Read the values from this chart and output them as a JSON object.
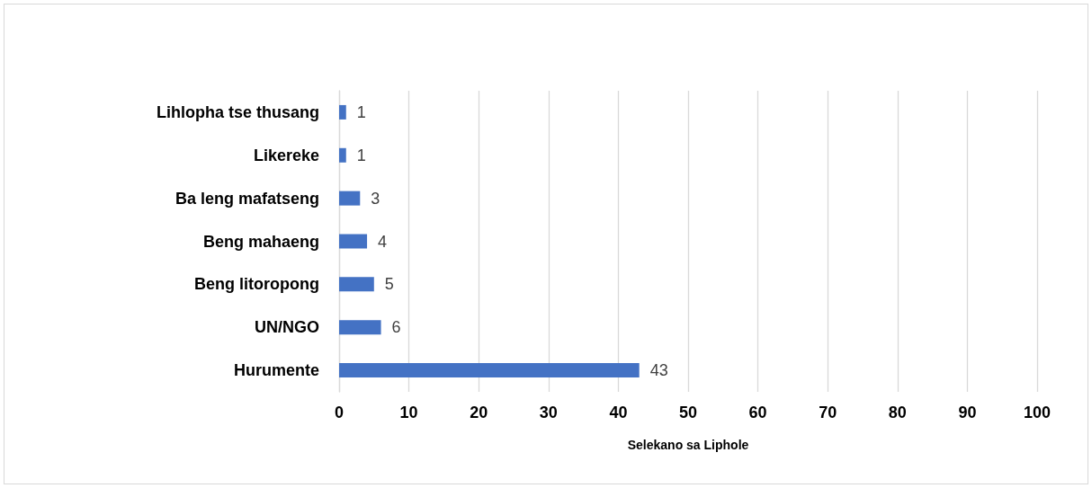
{
  "chart_data": {
    "type": "bar",
    "orientation": "horizontal",
    "xlabel": "Selekano sa Liphole",
    "categories": [
      "Lihlopha tse thusang",
      "Likereke",
      "Ba leng mafatseng",
      "Beng mahaeng",
      "Beng litoropong",
      "UN/NGO",
      "Hurumente"
    ],
    "values": [
      1,
      1,
      3,
      4,
      5,
      6,
      43
    ],
    "color": "#4472c4",
    "xlim": [
      0,
      100
    ],
    "xticks": [
      0,
      10,
      20,
      30,
      40,
      50,
      60,
      70,
      80,
      90,
      100
    ],
    "grid": "x",
    "data_labels": true
  }
}
